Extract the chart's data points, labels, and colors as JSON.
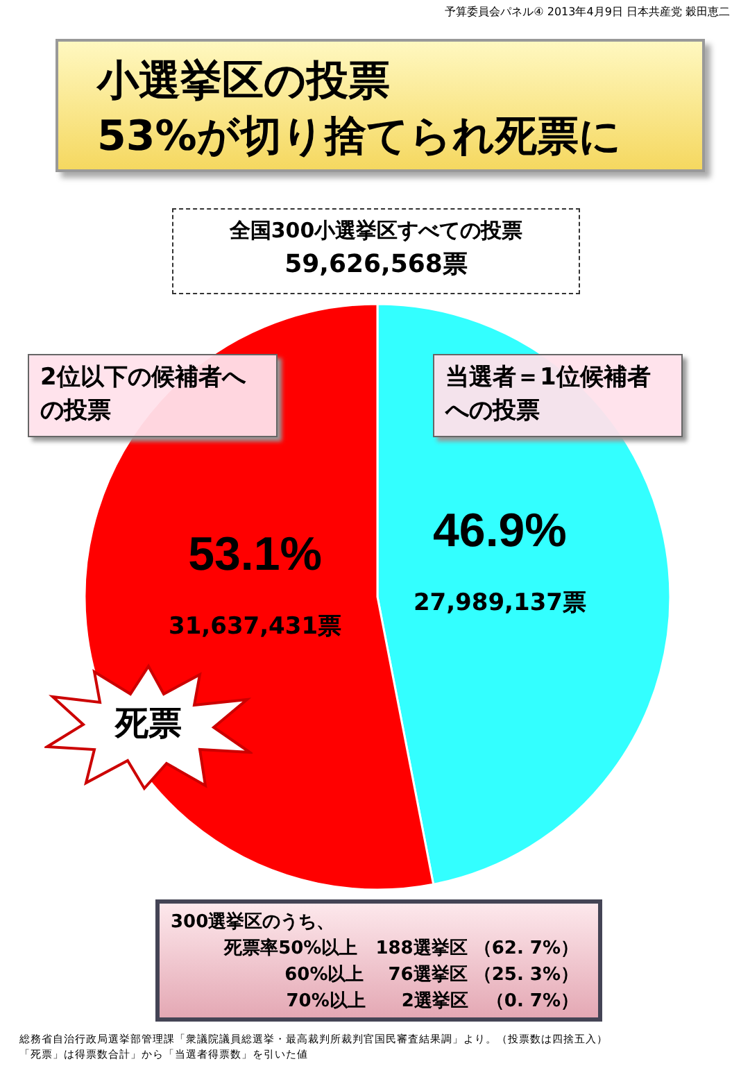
{
  "chart_data": {
    "type": "pie",
    "title": "小選挙区の投票",
    "subtitle": "53%が切り捨てられ死票に",
    "categories": [
      "当選者＝1位候補者への投票",
      "2位以下の候補者への投票"
    ],
    "values": [
      27989137,
      31637431
    ],
    "colors": [
      "#33ffff",
      "#ff0000"
    ],
    "value_labels": [
      "27,989,137票",
      "31,637,431票"
    ],
    "annotations": [
      "予算委員会パネル④ 2013年4月9日 日本共産党 穀田恵二",
      "全国300小選挙区すべての投票",
      "59,626,568票",
      {
        "text": "46.9%",
        "x": "当選者＝1位候補者への投票"
      },
      {
        "text": "53.1%",
        "x": "2位以下の候補者への投票"
      },
      "死票",
      "300選挙区のうち、",
      "死票率50%以上　188選挙区 （62. 7%）",
      "60%以上　 76選挙区 （25. 3%）",
      "70%以上　　2選挙区　（0. 7%）",
      "総務省自治行政局選挙部管理課「衆議院議員総選挙・最高裁判所裁判官国民審査結果調」より。（投票数は四捨五入）",
      "「死票」は得票数合計」から「当選者得票数」を引いた値"
    ]
  }
}
